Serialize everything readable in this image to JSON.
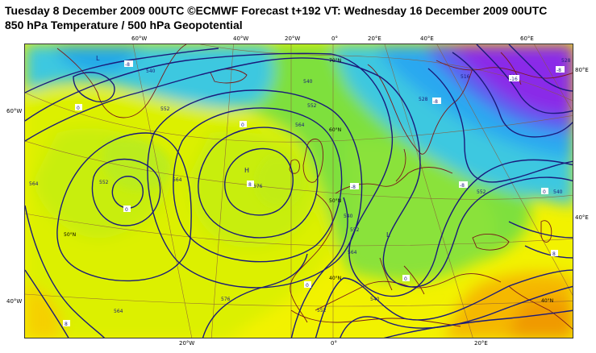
{
  "header": {
    "title_line1": "Tuesday 8 December 2009 00UTC ©ECMWF Forecast t+192 VT: Wednesday 16 December 2009 00UTC",
    "title_line2": "850 hPa Temperature / 500 hPa Geopotential"
  },
  "map": {
    "colors": {
      "land_border": "#7a1a1a",
      "contour": "#1a1a7a",
      "graticule": "#8a5a3a"
    },
    "top_labels": [
      "60°W",
      "40°W",
      "20°W",
      "0°",
      "20°E",
      "40°E",
      "60°E"
    ],
    "bottom_labels": [
      "20°W",
      "0°",
      "20°E"
    ],
    "left_labels": [
      "60°W",
      "40°W"
    ],
    "right_labels": [
      "80°E",
      "40°E"
    ],
    "inner_lat_labels": [
      "70°N",
      "60°N",
      "50°N",
      "40°N",
      "50°N",
      "40°N"
    ],
    "pressure_labels": [
      "H",
      "L",
      "L"
    ],
    "contour_labels": [
      "540",
      "552",
      "564",
      "576",
      "552",
      "564",
      "540",
      "552",
      "564",
      "540",
      "552",
      "564",
      "528",
      "516",
      "504",
      "540",
      "552",
      "564",
      "576",
      "552",
      "540",
      "528"
    ],
    "isotherm_labels": [
      "0",
      "0",
      "0",
      "8",
      "0",
      "-8",
      "-8",
      "-8",
      "0",
      "8",
      "8",
      "-16",
      "0",
      "-8",
      "-8"
    ]
  }
}
